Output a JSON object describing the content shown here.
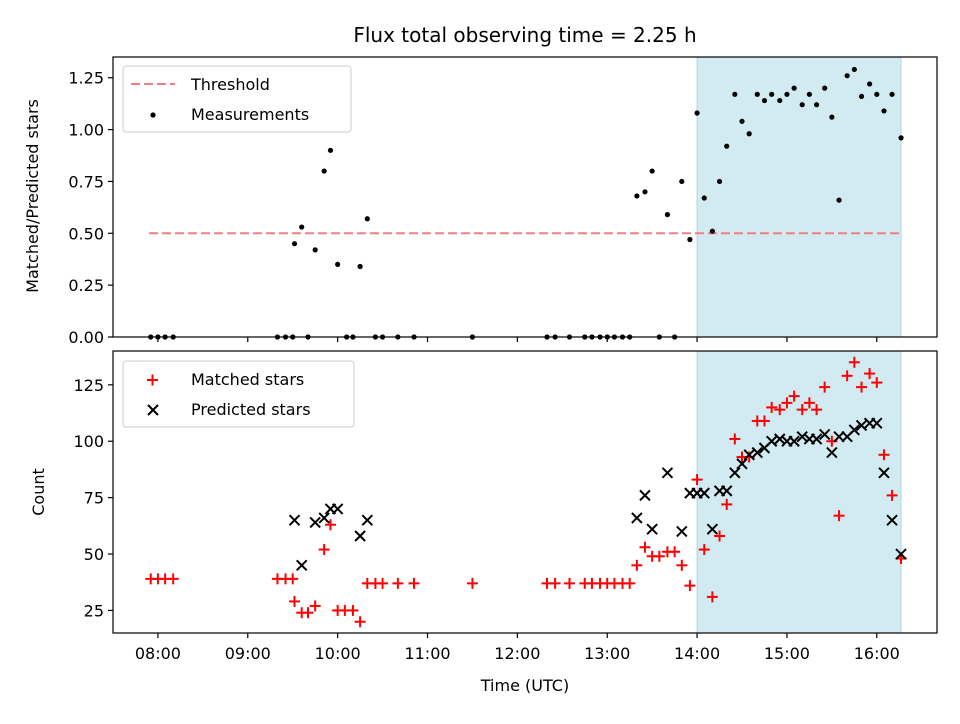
{
  "figure": {
    "title": "Flux total observing time = 2.25 h",
    "x_label": "Time (UTC)"
  },
  "colors": {
    "threshold": "#f08080",
    "measurement": "#000000",
    "matched": "#ff0000",
    "predicted": "#000000",
    "highlight_fill": "#add8e6"
  },
  "chart_data": [
    {
      "type": "scatter",
      "panel": "top",
      "ylabel": "Matched/Predicted stars",
      "xlim": [
        7.5,
        16.67
      ],
      "ylim": [
        0,
        1.35
      ],
      "y_ticks": [
        0,
        0.25,
        0.5,
        0.75,
        1.0,
        1.25
      ],
      "y_tick_labels": [
        "0.00",
        "0.25",
        "0.50",
        "0.75",
        "1.00",
        "1.25"
      ],
      "x_ticks": [
        8,
        9,
        10,
        11,
        12,
        13,
        14,
        15,
        16
      ],
      "grid": false,
      "legend_position": "upper-left",
      "highlight_span": [
        14.0,
        16.27
      ],
      "threshold": {
        "name": "Threshold",
        "y": 0.5,
        "x_range": [
          7.9,
          16.27
        ]
      },
      "series": [
        {
          "name": "Measurements",
          "marker": "dot",
          "points": [
            [
              7.92,
              0
            ],
            [
              8.0,
              0
            ],
            [
              8.08,
              0
            ],
            [
              8.17,
              0
            ],
            [
              9.33,
              0
            ],
            [
              9.42,
              0
            ],
            [
              9.5,
              0
            ],
            [
              9.67,
              0
            ],
            [
              9.52,
              0.45
            ],
            [
              9.6,
              0.53
            ],
            [
              9.75,
              0.42
            ],
            [
              9.85,
              0.8
            ],
            [
              9.92,
              0.9
            ],
            [
              10.0,
              0.35
            ],
            [
              10.1,
              0
            ],
            [
              10.17,
              0
            ],
            [
              10.25,
              0.34
            ],
            [
              10.33,
              0.57
            ],
            [
              10.42,
              0
            ],
            [
              10.5,
              0
            ],
            [
              10.67,
              0
            ],
            [
              10.85,
              0
            ],
            [
              11.5,
              0
            ],
            [
              12.33,
              0
            ],
            [
              12.42,
              0
            ],
            [
              12.58,
              0
            ],
            [
              12.75,
              0
            ],
            [
              12.83,
              0
            ],
            [
              12.92,
              0
            ],
            [
              13.0,
              0
            ],
            [
              13.08,
              0
            ],
            [
              13.17,
              0
            ],
            [
              13.25,
              0
            ],
            [
              13.33,
              0.68
            ],
            [
              13.42,
              0.7
            ],
            [
              13.5,
              0.8
            ],
            [
              13.58,
              0
            ],
            [
              13.75,
              0
            ],
            [
              13.67,
              0.59
            ],
            [
              13.83,
              0.75
            ],
            [
              13.92,
              0.47
            ],
            [
              14.0,
              1.08
            ],
            [
              14.08,
              0.67
            ],
            [
              14.17,
              0.51
            ],
            [
              14.25,
              0.75
            ],
            [
              14.33,
              0.92
            ],
            [
              14.42,
              1.17
            ],
            [
              14.5,
              1.04
            ],
            [
              14.58,
              0.98
            ],
            [
              14.67,
              1.17
            ],
            [
              14.75,
              1.14
            ],
            [
              14.83,
              1.17
            ],
            [
              14.92,
              1.14
            ],
            [
              15.0,
              1.17
            ],
            [
              15.08,
              1.2
            ],
            [
              15.17,
              1.12
            ],
            [
              15.25,
              1.17
            ],
            [
              15.33,
              1.12
            ],
            [
              15.42,
              1.2
            ],
            [
              15.5,
              1.06
            ],
            [
              15.58,
              0.66
            ],
            [
              15.67,
              1.26
            ],
            [
              15.75,
              1.29
            ],
            [
              15.83,
              1.16
            ],
            [
              15.92,
              1.22
            ],
            [
              16.0,
              1.17
            ],
            [
              16.08,
              1.09
            ],
            [
              16.17,
              1.17
            ],
            [
              16.27,
              0.96
            ]
          ]
        }
      ]
    },
    {
      "type": "scatter",
      "panel": "bottom",
      "ylabel": "Count",
      "xlabel": "Time (UTC)",
      "xlim": [
        7.5,
        16.67
      ],
      "ylim": [
        15,
        140
      ],
      "y_ticks": [
        25,
        50,
        75,
        100,
        125
      ],
      "y_tick_labels": [
        "25",
        "50",
        "75",
        "100",
        "125"
      ],
      "x_ticks": [
        8,
        9,
        10,
        11,
        12,
        13,
        14,
        15,
        16
      ],
      "x_tick_labels": [
        "08:00",
        "09:00",
        "10:00",
        "11:00",
        "12:00",
        "13:00",
        "14:00",
        "15:00",
        "16:00"
      ],
      "grid": false,
      "legend_position": "upper-left",
      "highlight_span": [
        14.0,
        16.27
      ],
      "series": [
        {
          "name": "Matched stars",
          "marker": "plus",
          "points": [
            [
              7.92,
              39
            ],
            [
              8.0,
              39
            ],
            [
              8.08,
              39
            ],
            [
              8.17,
              39
            ],
            [
              9.33,
              39
            ],
            [
              9.42,
              39
            ],
            [
              9.5,
              39
            ],
            [
              9.52,
              29
            ],
            [
              9.6,
              24
            ],
            [
              9.67,
              24
            ],
            [
              9.75,
              27
            ],
            [
              9.85,
              52
            ],
            [
              9.92,
              63
            ],
            [
              10.0,
              25
            ],
            [
              10.08,
              25
            ],
            [
              10.17,
              25
            ],
            [
              10.25,
              20
            ],
            [
              10.33,
              37
            ],
            [
              10.42,
              37
            ],
            [
              10.5,
              37
            ],
            [
              10.67,
              37
            ],
            [
              10.85,
              37
            ],
            [
              11.5,
              37
            ],
            [
              12.33,
              37
            ],
            [
              12.42,
              37
            ],
            [
              12.58,
              37
            ],
            [
              12.75,
              37
            ],
            [
              12.83,
              37
            ],
            [
              12.92,
              37
            ],
            [
              13.0,
              37
            ],
            [
              13.08,
              37
            ],
            [
              13.17,
              37
            ],
            [
              13.25,
              37
            ],
            [
              13.33,
              45
            ],
            [
              13.42,
              53
            ],
            [
              13.5,
              49
            ],
            [
              13.58,
              49
            ],
            [
              13.67,
              51
            ],
            [
              13.75,
              51
            ],
            [
              13.83,
              45
            ],
            [
              13.92,
              36
            ],
            [
              14.0,
              83
            ],
            [
              14.08,
              52
            ],
            [
              14.17,
              31
            ],
            [
              14.25,
              58
            ],
            [
              14.33,
              72
            ],
            [
              14.42,
              101
            ],
            [
              14.5,
              93
            ],
            [
              14.58,
              93
            ],
            [
              14.67,
              109
            ],
            [
              14.75,
              109
            ],
            [
              14.83,
              115
            ],
            [
              14.92,
              114
            ],
            [
              15.0,
              117
            ],
            [
              15.08,
              120
            ],
            [
              15.17,
              114
            ],
            [
              15.25,
              117
            ],
            [
              15.33,
              114
            ],
            [
              15.42,
              124
            ],
            [
              15.5,
              100
            ],
            [
              15.58,
              67
            ],
            [
              15.67,
              129
            ],
            [
              15.75,
              135
            ],
            [
              15.83,
              124
            ],
            [
              15.92,
              130
            ],
            [
              16.0,
              126
            ],
            [
              16.08,
              94
            ],
            [
              16.17,
              76
            ],
            [
              16.27,
              48
            ]
          ]
        },
        {
          "name": "Predicted stars",
          "marker": "x",
          "points": [
            [
              9.52,
              65
            ],
            [
              9.6,
              45
            ],
            [
              9.75,
              64
            ],
            [
              9.85,
              66
            ],
            [
              9.92,
              70
            ],
            [
              10.0,
              70
            ],
            [
              10.25,
              58
            ],
            [
              10.33,
              65
            ],
            [
              13.33,
              66
            ],
            [
              13.42,
              76
            ],
            [
              13.5,
              61
            ],
            [
              13.67,
              86
            ],
            [
              13.83,
              60
            ],
            [
              13.92,
              77
            ],
            [
              14.0,
              77
            ],
            [
              14.08,
              77
            ],
            [
              14.17,
              61
            ],
            [
              14.25,
              78
            ],
            [
              14.33,
              78
            ],
            [
              14.42,
              86
            ],
            [
              14.5,
              90
            ],
            [
              14.58,
              94
            ],
            [
              14.67,
              95
            ],
            [
              14.75,
              97
            ],
            [
              14.83,
              100
            ],
            [
              14.92,
              101
            ],
            [
              15.0,
              100
            ],
            [
              15.08,
              100
            ],
            [
              15.17,
              102
            ],
            [
              15.25,
              101
            ],
            [
              15.33,
              101
            ],
            [
              15.42,
              103
            ],
            [
              15.5,
              95
            ],
            [
              15.58,
              102
            ],
            [
              15.67,
              102
            ],
            [
              15.75,
              105
            ],
            [
              15.83,
              107
            ],
            [
              15.92,
              108
            ],
            [
              16.0,
              108
            ],
            [
              16.08,
              86
            ],
            [
              16.17,
              65
            ],
            [
              16.27,
              50
            ]
          ]
        }
      ]
    }
  ]
}
